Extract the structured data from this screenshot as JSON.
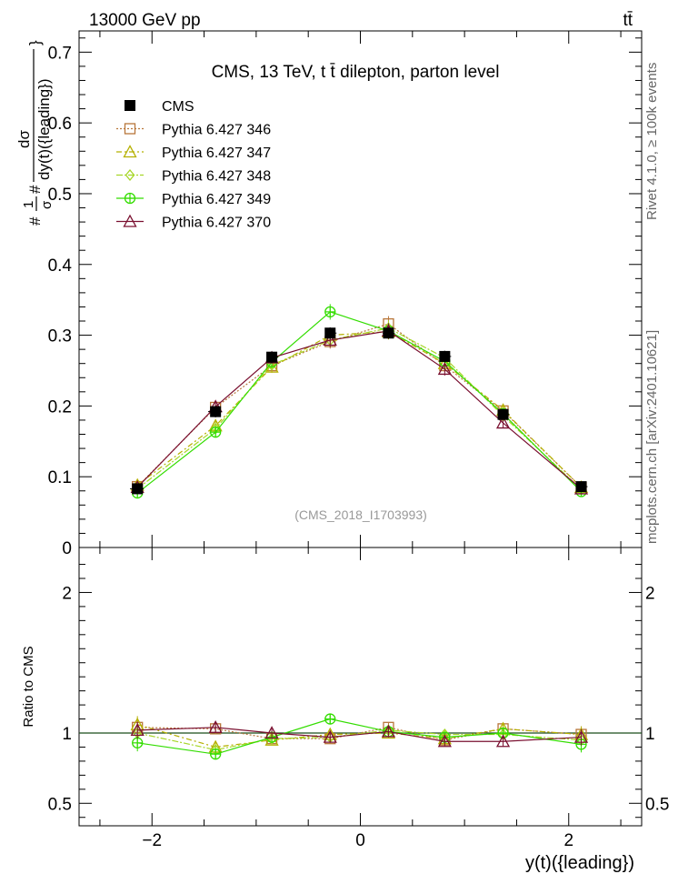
{
  "header": {
    "energy_label": "13000 GeV pp",
    "process_label": "tt̄",
    "rivet_label": "Rivet 4.1.0, ≥ 100k events",
    "site_label": "mcplots.cern.ch [arXiv:2401.10621]"
  },
  "chart_data": {
    "type": "line",
    "title": "CMS, 13 TeV, t t̄ dilepton, parton level",
    "analysis_id": "(CMS_2018_I1703993)",
    "ylabel": "#frac{1}{σ}#frac{dσ}{dy(t)({leading})}",
    "ylabel_parts": [
      "#",
      "1",
      "σ",
      "#",
      "dσ",
      "dy(t)({leading})",
      "}"
    ],
    "xlabel": "y(t)({leading})",
    "ratio_ylabel": "Ratio to CMS",
    "xlim": [
      -2.7,
      2.7
    ],
    "ylim": [
      0,
      0.73
    ],
    "ratio_ylim": [
      0.34,
      2.32
    ],
    "x_ticks": [
      -2,
      0,
      2
    ],
    "x_tick_labels": [
      "−2",
      "0",
      "2"
    ],
    "y_ticks": [
      0,
      0.1,
      0.2,
      0.3,
      0.4,
      0.5,
      0.6,
      0.7
    ],
    "y_tick_labels": [
      "0",
      "0.1",
      "0.2",
      "0.3",
      "0.4",
      "0.5",
      "0.6",
      "0.7"
    ],
    "ratio_ticks": [
      0.5,
      1,
      2
    ],
    "ratio_tick_labels": [
      "0.5",
      "1",
      "2"
    ],
    "x": [
      -2.14,
      -1.39,
      -0.85,
      -0.29,
      0.27,
      0.81,
      1.37,
      2.12
    ],
    "bin_edges": [
      -2.6,
      -1.7,
      -1.1,
      -0.55,
      0,
      0.55,
      1.1,
      1.7,
      2.6
    ],
    "data": {
      "name": "CMS",
      "values": [
        0.083,
        0.192,
        0.269,
        0.303,
        0.303,
        0.27,
        0.188,
        0.086
      ],
      "errors": [
        0.004,
        0.008,
        0.008,
        0.008,
        0.008,
        0.008,
        0.007,
        0.004
      ],
      "color": "#000000"
    },
    "series": [
      {
        "name": "Pythia 6.427 346",
        "color": "#b8763a",
        "dash": "2,2",
        "marker": "square",
        "values": [
          0.086,
          0.198,
          0.257,
          0.291,
          0.316,
          0.257,
          0.193,
          0.085
        ],
        "errors": [
          0.005,
          0.007,
          0.008,
          0.01,
          0.011,
          0.009,
          0.007,
          0.005
        ],
        "ratios": [
          1.04,
          1.03,
          0.96,
          0.96,
          1.04,
          0.95,
          1.03,
          0.99
        ]
      },
      {
        "name": "Pythia 6.427 347",
        "color": "#b5b000",
        "dash": "6,3,2,3",
        "marker": "triangle",
        "values": [
          0.088,
          0.172,
          0.255,
          0.3,
          0.305,
          0.26,
          0.194,
          0.085
        ],
        "errors": [
          0.005,
          0.007,
          0.008,
          0.01,
          0.011,
          0.009,
          0.007,
          0.005
        ],
        "ratios": [
          1.06,
          0.9,
          0.95,
          0.99,
          1.0,
          0.96,
          1.03,
          0.99
        ]
      },
      {
        "name": "Pythia 6.427 348",
        "color": "#a6d627",
        "dash": "7,2,2,2",
        "marker": "diamond",
        "values": [
          0.083,
          0.168,
          0.258,
          0.293,
          0.31,
          0.268,
          0.186,
          0.082
        ],
        "errors": [
          0.005,
          0.007,
          0.008,
          0.01,
          0.011,
          0.009,
          0.007,
          0.005
        ],
        "ratios": [
          1.0,
          0.88,
          0.96,
          0.97,
          1.02,
          0.99,
          0.99,
          0.95
        ]
      },
      {
        "name": "Pythia 6.427 349",
        "color": "#33dd00",
        "dash": "",
        "marker": "circle-cross",
        "values": [
          0.077,
          0.163,
          0.262,
          0.333,
          0.306,
          0.263,
          0.189,
          0.079
        ],
        "errors": [
          0.005,
          0.007,
          0.008,
          0.011,
          0.011,
          0.009,
          0.007,
          0.005
        ],
        "ratios": [
          0.93,
          0.85,
          0.97,
          1.1,
          1.01,
          0.97,
          1.0,
          0.92
        ]
      },
      {
        "name": "Pythia 6.427 370",
        "color": "#7a1030",
        "dash": "",
        "marker": "triangle",
        "values": [
          0.085,
          0.199,
          0.268,
          0.293,
          0.306,
          0.252,
          0.176,
          0.083
        ],
        "errors": [
          0.005,
          0.007,
          0.008,
          0.01,
          0.011,
          0.009,
          0.007,
          0.005
        ],
        "ratios": [
          1.02,
          1.04,
          1.0,
          0.97,
          1.01,
          0.94,
          0.94,
          0.97
        ]
      }
    ]
  }
}
